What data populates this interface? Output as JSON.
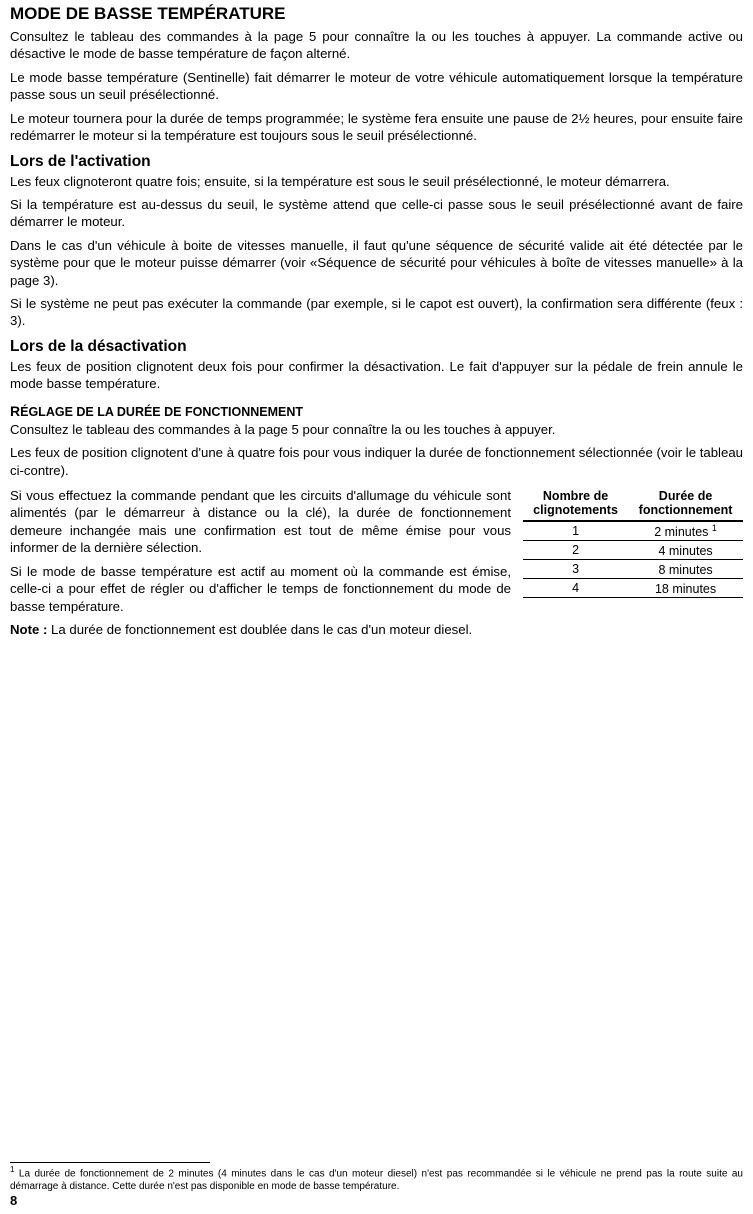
{
  "title": "MODE DE BASSE TEMPÉRATURE",
  "intro": [
    "Consultez le tableau des commandes à la page 5 pour connaître la ou les touches à appuyer. La commande active ou désactive le mode de basse température de façon alterné.",
    "Le mode basse température (Sentinelle) fait démarrer le moteur de votre véhicule automatiquement lorsque la température passe sous un seuil présélectionné.",
    "Le moteur tournera pour la durée de temps programmée; le système fera ensuite une pause de 2½ heures, pour ensuite faire redémarrer le moteur si la température est toujours sous le seuil présélectionné."
  ],
  "activation": {
    "heading": "Lors de l'activation",
    "paras": [
      "Les feux clignoteront quatre fois; ensuite, si la température est sous le seuil présélectionné, le moteur démarrera.",
      "Si la température est au-dessus du seuil, le système attend que celle-ci passe sous le seuil présélectionné avant de faire démarrer le moteur.",
      "Dans le cas d'un véhicule à boite de vitesses manuelle, il faut qu'une séquence de sécurité valide ait été détectée par le système pour que le moteur puisse démarrer (voir «Séquence de sécurité pour véhicules à boîte de vitesses manuelle» à la page 3).",
      "Si le système ne peut pas exécuter la commande (par exemple, si le capot est ouvert), la confirmation sera différente (feux : 3)."
    ]
  },
  "deactivation": {
    "heading": "Lors de la désactivation",
    "para": "Les feux de position clignotent deux fois pour confirmer la désactivation. Le fait d'appuyer sur la pédale de frein annule le mode basse température."
  },
  "runtime": {
    "heading_cap": "R",
    "heading_rest": "ÉGLAGE DE LA DURÉE DE FONCTIONNEMENT",
    "paras_before_wrap": [
      "Consultez le tableau des commandes à la page 5 pour connaître la ou les touches à appuyer.",
      "Les feux de position clignotent d'une à quatre fois pour vous indiquer la durée de fonctionnement sélectionnée (voir le tableau ci-contre)."
    ],
    "paras_wrapped": [
      "Si vous effectuez la commande pendant que les circuits d'allumage du véhicule sont alimentés (par le démarreur à distance ou la clé), la durée de fonctionnement demeure inchangée mais une confirmation est tout de même émise pour vous informer de la dernière sélection.",
      "Si le mode de basse température est actif au moment où la commande est émise, celle-ci a pour effet de régler ou d'afficher le temps de fonctionnement du mode de basse température."
    ],
    "note_label": "Note :",
    "note_text": " La durée de fonctionnement est doublée dans le cas d'un moteur diesel."
  },
  "table": {
    "header_col1_line1": "Nombre de",
    "header_col1_line2": "clignotements",
    "header_col2_line1": "Durée de",
    "header_col2_line2": "fonctionnement",
    "rows": [
      {
        "n": "1",
        "d": "2 minutes ",
        "sup": "1"
      },
      {
        "n": "2",
        "d": "4 minutes",
        "sup": ""
      },
      {
        "n": "3",
        "d": "8 minutes",
        "sup": ""
      },
      {
        "n": "4",
        "d": "18 minutes",
        "sup": ""
      }
    ]
  },
  "footnote": {
    "num": "1",
    "text": " La durée de fonctionnement de 2 minutes (4 minutes dans le cas d'un moteur diesel) n'est pas recommandée si le véhicule ne prend pas la route suite au démarrage à distance. Cette durée n'est pas disponible en mode de basse température."
  },
  "page_number": "8"
}
